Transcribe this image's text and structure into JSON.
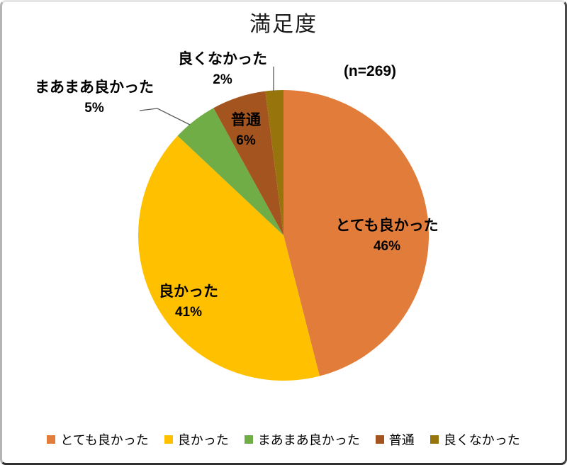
{
  "title": "満足度",
  "n_label": "(n=269)",
  "chart_data": {
    "type": "pie",
    "title": "満足度",
    "annotation": "(n=269)",
    "labels": [
      "とても良かった",
      "良かった",
      "まあまあ良かった",
      "普通",
      "良くなかった"
    ],
    "values": [
      46,
      41,
      5,
      6,
      2
    ],
    "unit": "%",
    "colors": [
      "#E17C3B",
      "#FFC000",
      "#71AD47",
      "#A4541E",
      "#97750C"
    ],
    "start_angle_deg": 0,
    "direction": "clockwise",
    "legend_position": "bottom",
    "background": "#FFFFFF"
  },
  "pct_labels": [
    "46%",
    "41%",
    "5%",
    "6%",
    "2%"
  ],
  "leader_line_color": "#595959"
}
